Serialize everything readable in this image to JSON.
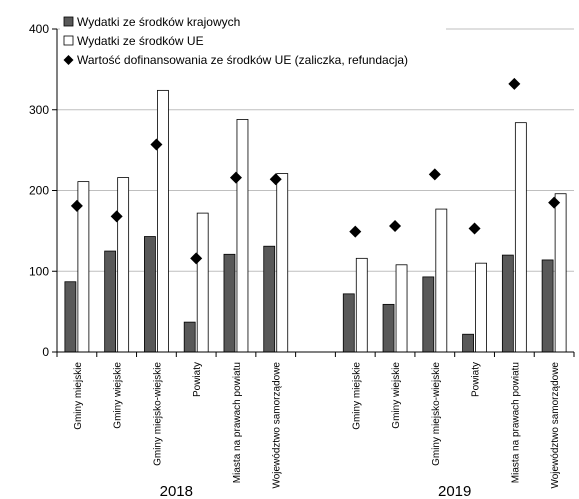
{
  "chart_data": {
    "type": "bar",
    "ylim": [
      0,
      400
    ],
    "yticks": [
      0,
      100,
      200,
      300,
      400
    ],
    "legend": {
      "position": "top-left",
      "entries": [
        {
          "label": "Wydatki ze środków krajowych",
          "marker": "dark-square"
        },
        {
          "label": "Wydatki ze środków UE",
          "marker": "white-square"
        },
        {
          "label": "Wartość dofinansowania ze środków UE (zaliczka, refundacja)",
          "marker": "diamond"
        }
      ]
    },
    "colors": {
      "domestic": "#595959",
      "eu": "#ffffff",
      "marker": "#000000",
      "grid": "#bfbfbf"
    },
    "groups": [
      {
        "year": "2018",
        "categories": [
          "Gminy miejskie",
          "Gminy wiejskie",
          "Gminy miejsko-wiejskie",
          "Powiaty",
          "Miasta na prawach powiatu",
          "Województwo samorządowe"
        ],
        "series": [
          {
            "name": "Wydatki ze środków krajowych",
            "type": "bar",
            "values": [
              87,
              125,
              143,
              37,
              121,
              131
            ]
          },
          {
            "name": "Wydatki ze środków UE",
            "type": "bar",
            "values": [
              211,
              216,
              324,
              172,
              288,
              221
            ]
          },
          {
            "name": "Wartość dofinansowania ze środków UE (zaliczka, refundacja)",
            "type": "scatter",
            "values": [
              181,
              168,
              257,
              116,
              216,
              214
            ]
          }
        ]
      },
      {
        "year": "2019",
        "categories": [
          "Gminy miejskie",
          "Gminy wiejskie",
          "Gminy miejsko-wiejskie",
          "Powiaty",
          "Miasta na prawach powiatu",
          "Województwo samorządowe"
        ],
        "series": [
          {
            "name": "Wydatki ze środków krajowych",
            "type": "bar",
            "values": [
              72,
              59,
              93,
              22,
              120,
              114
            ]
          },
          {
            "name": "Wydatki ze środków UE",
            "type": "bar",
            "values": [
              116,
              108,
              177,
              110,
              284,
              196
            ]
          },
          {
            "name": "Wartość dofinansowania ze środków UE (zaliczka, refundacja)",
            "type": "scatter",
            "values": [
              149,
              156,
              220,
              153,
              332,
              185
            ]
          }
        ]
      }
    ]
  }
}
